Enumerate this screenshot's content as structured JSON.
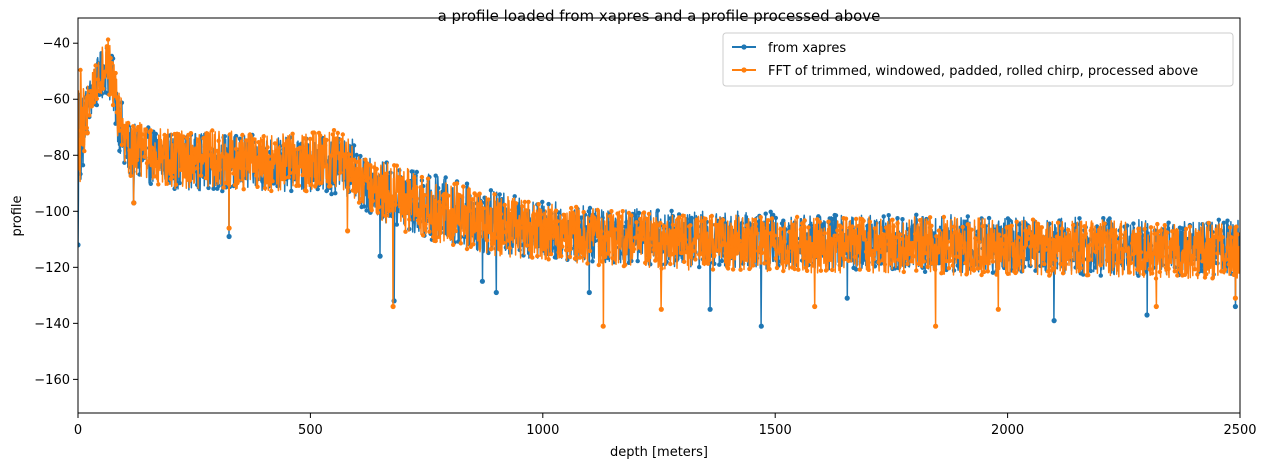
{
  "chart_data": {
    "type": "line",
    "title": "a profile loaded from xapres and a profile processed above",
    "xlabel": "depth [meters]",
    "ylabel": "profile",
    "xlim": [
      0,
      2500
    ],
    "ylim": [
      -172,
      -31
    ],
    "xticks": [
      0,
      500,
      1000,
      1500,
      2000,
      2500
    ],
    "xtick_labels": [
      "0",
      "500",
      "1000",
      "1500",
      "2000",
      "2500"
    ],
    "yticks": [
      -160,
      -140,
      -120,
      -100,
      -80,
      -60,
      -40
    ],
    "ytick_labels": [
      "−160",
      "−140",
      "−120",
      "−100",
      "−80",
      "−60",
      "−40"
    ],
    "grid": false,
    "legend_position": "top-right",
    "series": [
      {
        "name": "from xapres",
        "color": "#1f77b4",
        "marker": "circle",
        "envelope": {
          "depth": [
            0,
            5,
            15,
            30,
            45,
            60,
            75,
            90,
            100,
            150,
            200,
            300,
            400,
            500,
            550,
            590,
            600,
            650,
            700,
            800,
            900,
            1000,
            1100,
            1200,
            1300,
            1400,
            1500,
            1600,
            1700,
            1800,
            1900,
            2000,
            2100,
            2200,
            2300,
            2400,
            2500
          ],
          "upper": [
            -44,
            -48,
            -57,
            -50,
            -44,
            -39,
            -45,
            -55,
            -68,
            -70,
            -72,
            -72,
            -73,
            -74,
            -72,
            -74,
            -80,
            -82,
            -84,
            -88,
            -93,
            -96,
            -98,
            -99,
            -100,
            -100,
            -100,
            -101,
            -101,
            -101,
            -101,
            -102,
            -102,
            -102,
            -103,
            -103,
            -103
          ],
          "lower": [
            -111,
            -100,
            -75,
            -66,
            -62,
            -58,
            -64,
            -80,
            -88,
            -90,
            -92,
            -93,
            -93,
            -93,
            -94,
            -95,
            -98,
            -103,
            -108,
            -112,
            -116,
            -117,
            -118,
            -119,
            -120,
            -120,
            -121,
            -121,
            -121,
            -122,
            -122,
            -122,
            -122,
            -123,
            -123,
            -123,
            -123
          ]
        },
        "spikes": [
          {
            "x": 0,
            "y": -112
          },
          {
            "x": 120,
            "y": -97
          },
          {
            "x": 325,
            "y": -109
          },
          {
            "x": 650,
            "y": -116
          },
          {
            "x": 680,
            "y": -132
          },
          {
            "x": 870,
            "y": -125
          },
          {
            "x": 900,
            "y": -129
          },
          {
            "x": 1100,
            "y": -129
          },
          {
            "x": 1360,
            "y": -135
          },
          {
            "x": 1470,
            "y": -141
          },
          {
            "x": 1655,
            "y": -131
          },
          {
            "x": 2100,
            "y": -139
          },
          {
            "x": 2300,
            "y": -137
          },
          {
            "x": 2490,
            "y": -134
          }
        ]
      },
      {
        "name": "FFT of trimmed, windowed, padded, rolled chirp, processed above",
        "color": "#ff7f0e",
        "marker": "circle",
        "envelope": {
          "depth": [
            0,
            5,
            15,
            30,
            45,
            55,
            65,
            75,
            90,
            100,
            150,
            200,
            300,
            400,
            500,
            550,
            590,
            600,
            650,
            700,
            800,
            900,
            1000,
            1100,
            1200,
            1300,
            1400,
            1500,
            1600,
            1700,
            1800,
            1900,
            2000,
            2100,
            2200,
            2300,
            2400,
            2500
          ],
          "upper": [
            -43,
            -48,
            -56,
            -49,
            -42,
            -37,
            -37,
            -45,
            -56,
            -67,
            -69,
            -71,
            -71,
            -72,
            -72,
            -71,
            -73,
            -80,
            -82,
            -84,
            -89,
            -94,
            -97,
            -99,
            -100,
            -101,
            -101,
            -102,
            -102,
            -102,
            -102,
            -102,
            -103,
            -103,
            -103,
            -104,
            -104,
            -104
          ],
          "lower": [
            -110,
            -100,
            -76,
            -66,
            -62,
            -58,
            -58,
            -63,
            -78,
            -88,
            -90,
            -92,
            -92,
            -93,
            -93,
            -93,
            -95,
            -97,
            -103,
            -108,
            -112,
            -116,
            -118,
            -119,
            -120,
            -121,
            -121,
            -122,
            -122,
            -122,
            -122,
            -123,
            -123,
            -123,
            -123,
            -124,
            -124,
            -124
          ]
        },
        "spikes": [
          {
            "x": 20,
            "y": -72
          },
          {
            "x": 120,
            "y": -97
          },
          {
            "x": 325,
            "y": -106
          },
          {
            "x": 580,
            "y": -107
          },
          {
            "x": 678,
            "y": -134
          },
          {
            "x": 1130,
            "y": -141
          },
          {
            "x": 1255,
            "y": -135
          },
          {
            "x": 1585,
            "y": -134
          },
          {
            "x": 1845,
            "y": -141
          },
          {
            "x": 1980,
            "y": -135
          },
          {
            "x": 2320,
            "y": -134
          },
          {
            "x": 2490,
            "y": -131
          }
        ]
      }
    ]
  }
}
